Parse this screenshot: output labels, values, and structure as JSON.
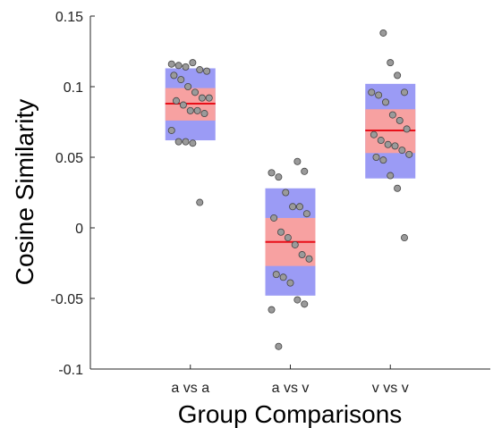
{
  "chart_data": {
    "type": "box",
    "xlabel": "Group Comparisons",
    "ylabel": "Cosine Similarity",
    "ylim": [
      -0.1,
      0.15
    ],
    "yticks": [
      0.15,
      0.1,
      0.05,
      0,
      -0.05,
      -0.1
    ],
    "ytick_labels": [
      "0.15",
      "0.1",
      "0.05",
      "0",
      "-0.05",
      "-0.1"
    ],
    "categories": [
      "a vs a",
      "a vs v",
      "v vs v"
    ],
    "grid": false,
    "colors": {
      "outer_band": "#9b9bf5",
      "inner_band": "#f7a1a1",
      "mean_line": "#e8101a",
      "points": "#9a9a9a",
      "point_stroke": "#444444"
    },
    "groups": [
      {
        "category": "a vs a",
        "mean": 0.088,
        "inner": [
          0.076,
          0.099
        ],
        "outer": [
          0.062,
          0.113
        ],
        "points": [
          0.116,
          0.115,
          0.114,
          0.117,
          0.112,
          0.111,
          0.108,
          0.105,
          0.1,
          0.096,
          0.092,
          0.092,
          0.09,
          0.087,
          0.083,
          0.083,
          0.081,
          0.069,
          0.061,
          0.061,
          0.06,
          0.018
        ]
      },
      {
        "category": "a vs v",
        "mean": -0.01,
        "inner": [
          -0.027,
          0.007
        ],
        "outer": [
          -0.048,
          0.028
        ],
        "points": [
          0.047,
          0.04,
          0.039,
          0.036,
          0.025,
          0.015,
          0.015,
          0.01,
          0.007,
          -0.003,
          -0.007,
          -0.012,
          -0.019,
          -0.022,
          -0.033,
          -0.035,
          -0.039,
          -0.051,
          -0.054,
          -0.058,
          -0.084
        ]
      },
      {
        "category": "v vs v",
        "mean": 0.069,
        "inner": [
          0.053,
          0.084
        ],
        "outer": [
          0.035,
          0.102
        ],
        "points": [
          0.138,
          0.117,
          0.108,
          0.096,
          0.096,
          0.094,
          0.089,
          0.08,
          0.076,
          0.07,
          0.066,
          0.062,
          0.059,
          0.058,
          0.055,
          0.052,
          0.05,
          0.048,
          0.037,
          0.028,
          -0.007
        ]
      }
    ]
  }
}
